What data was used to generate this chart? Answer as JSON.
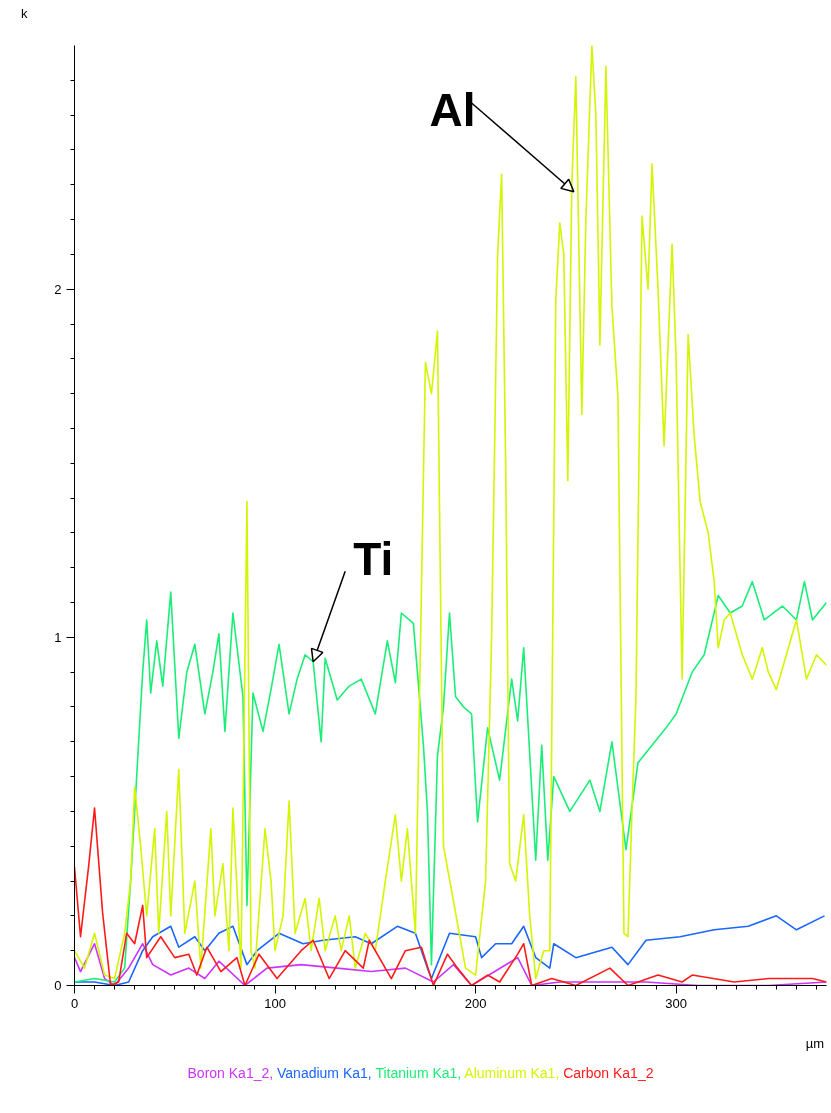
{
  "chart_data": {
    "type": "line",
    "xlabel": "µm",
    "ylabel": "k",
    "xlim": [
      0,
      375
    ],
    "ylim": [
      0,
      2.7
    ],
    "xticks": [
      0,
      {
        "value": 10,
        "label": null
      },
      {
        "value": 20,
        "label": null
      },
      {
        "value": 30,
        "label": null
      },
      {
        "value": 40,
        "label": null
      },
      {
        "value": 50,
        "label": null
      },
      {
        "value": 60,
        "label": null
      },
      {
        "value": 70,
        "label": null
      },
      {
        "value": 80,
        "label": null
      },
      {
        "value": 90,
        "label": null
      },
      100,
      {
        "value": 110,
        "label": null
      },
      {
        "value": 120,
        "label": null
      },
      {
        "value": 130,
        "label": null
      },
      {
        "value": 140,
        "label": null
      },
      {
        "value": 150,
        "label": null
      },
      {
        "value": 160,
        "label": null
      },
      {
        "value": 170,
        "label": null
      },
      {
        "value": 180,
        "label": null
      },
      {
        "value": 190,
        "label": null
      },
      200,
      {
        "value": 210,
        "label": null
      },
      {
        "value": 220,
        "label": null
      },
      {
        "value": 230,
        "label": null
      },
      {
        "value": 240,
        "label": null
      },
      {
        "value": 250,
        "label": null
      },
      {
        "value": 260,
        "label": null
      },
      {
        "value": 270,
        "label": null
      },
      {
        "value": 280,
        "label": null
      },
      {
        "value": 290,
        "label": null
      },
      300,
      {
        "value": 310,
        "label": null
      },
      {
        "value": 320,
        "label": null
      },
      {
        "value": 330,
        "label": null
      },
      {
        "value": 340,
        "label": null
      },
      {
        "value": 350,
        "label": null
      },
      {
        "value": 360,
        "label": null
      },
      {
        "value": 370,
        "label": null
      }
    ],
    "yticks": [
      0,
      {
        "value": 0.1,
        "label": null
      },
      {
        "value": 0.2,
        "label": null
      },
      {
        "value": 0.3,
        "label": null
      },
      {
        "value": 0.4,
        "label": null
      },
      {
        "value": 0.5,
        "label": null
      },
      {
        "value": 0.6,
        "label": null
      },
      {
        "value": 0.7,
        "label": null
      },
      {
        "value": 0.8,
        "label": null
      },
      {
        "value": 0.9,
        "label": null
      },
      1,
      {
        "value": 1.1,
        "label": null
      },
      {
        "value": 1.2,
        "label": null
      },
      {
        "value": 1.3,
        "label": null
      },
      {
        "value": 1.4,
        "label": null
      },
      {
        "value": 1.5,
        "label": null
      },
      {
        "value": 1.6,
        "label": null
      },
      {
        "value": 1.7,
        "label": null
      },
      {
        "value": 1.8,
        "label": null
      },
      {
        "value": 1.9,
        "label": null
      },
      2,
      {
        "value": 2.1,
        "label": null
      },
      {
        "value": 2.2,
        "label": null
      },
      {
        "value": 2.3,
        "label": null
      },
      {
        "value": 2.4,
        "label": null
      },
      {
        "value": 2.5,
        "label": null
      },
      {
        "value": 2.6,
        "label": null
      }
    ],
    "grid": false,
    "legend": "bottom",
    "annotations": [
      {
        "text": "Al",
        "x": 249,
        "y": 2.28
      },
      {
        "text": "Ti",
        "x": 119,
        "y": 0.93
      }
    ],
    "series": [
      {
        "name": "Boron Ka1_2,",
        "color": "#cc33ff",
        "x": [
          0,
          3,
          10,
          15,
          20,
          27,
          34,
          39,
          48,
          57,
          65,
          72,
          85,
          96,
          113,
          131,
          148,
          165,
          179,
          189,
          198,
          221,
          228,
          242,
          267,
          285,
          311,
          346,
          375
        ],
        "values": [
          0.08,
          0.04,
          0.12,
          0.02,
          0.0,
          0.05,
          0.12,
          0.06,
          0.03,
          0.05,
          0.02,
          0.07,
          0.0,
          0.05,
          0.06,
          0.05,
          0.04,
          0.05,
          0.01,
          0.06,
          0.0,
          0.08,
          0.0,
          0.01,
          0.01,
          0.01,
          0.0,
          0.0,
          0.01
        ]
      },
      {
        "name": "Vanadium Ka1,",
        "color": "#1a66ff",
        "x": [
          0,
          10,
          20,
          27,
          34,
          39,
          48,
          52,
          60,
          65,
          72,
          79,
          86,
          91,
          102,
          114,
          124,
          140,
          148,
          161,
          170,
          176,
          178,
          187,
          200,
          203,
          210,
          218,
          224,
          230,
          237,
          239,
          250,
          268,
          276,
          285,
          302,
          319,
          336,
          350,
          360,
          374
        ],
        "values": [
          0.01,
          0.01,
          0.0,
          0.01,
          0.1,
          0.14,
          0.17,
          0.11,
          0.14,
          0.1,
          0.15,
          0.17,
          0.06,
          0.1,
          0.15,
          0.12,
          0.13,
          0.14,
          0.12,
          0.17,
          0.15,
          0.05,
          0.02,
          0.15,
          0.14,
          0.08,
          0.12,
          0.12,
          0.17,
          0.08,
          0.05,
          0.12,
          0.08,
          0.11,
          0.06,
          0.13,
          0.14,
          0.16,
          0.17,
          0.2,
          0.16,
          0.2
        ]
      },
      {
        "name": "Titanium Ka1,",
        "color": "#1aee77",
        "x": [
          0,
          10,
          20,
          25,
          28,
          31,
          34,
          36,
          38,
          41,
          44,
          48,
          52,
          56,
          60,
          65,
          69,
          72,
          75,
          79,
          84,
          86,
          89,
          94,
          98,
          102,
          107,
          111,
          115,
          119,
          123,
          125,
          131,
          137,
          143,
          150,
          156,
          160,
          163,
          169,
          174,
          176,
          178,
          181,
          184,
          187,
          190,
          194,
          198,
          201,
          206,
          212,
          218,
          221,
          224,
          230,
          233,
          236,
          239,
          247,
          257,
          262,
          268,
          275,
          281,
          288,
          295,
          300,
          308,
          314,
          321,
          327,
          333,
          338,
          344,
          353,
          360,
          364,
          368,
          375
        ],
        "values": [
          0.01,
          0.02,
          0.01,
          0.05,
          0.3,
          0.6,
          0.9,
          1.05,
          0.84,
          0.99,
          0.86,
          1.13,
          0.71,
          0.9,
          0.98,
          0.78,
          0.9,
          1.01,
          0.73,
          1.07,
          0.83,
          0.23,
          0.84,
          0.73,
          0.85,
          0.98,
          0.78,
          0.88,
          0.95,
          0.93,
          0.7,
          0.94,
          0.82,
          0.86,
          0.88,
          0.78,
          0.99,
          0.87,
          1.07,
          1.04,
          0.69,
          0.5,
          0.06,
          0.66,
          0.8,
          1.07,
          0.83,
          0.8,
          0.78,
          0.47,
          0.74,
          0.59,
          0.88,
          0.76,
          0.97,
          0.36,
          0.69,
          0.36,
          0.6,
          0.5,
          0.59,
          0.5,
          0.7,
          0.39,
          0.64,
          0.69,
          0.74,
          0.78,
          0.9,
          0.95,
          1.12,
          1.07,
          1.09,
          1.16,
          1.05,
          1.09,
          1.05,
          1.16,
          1.05,
          1.1
        ]
      },
      {
        "name": "Aluminum Ka1,",
        "color": "#d4f500",
        "x": [
          0,
          5,
          10,
          15,
          20,
          25,
          28,
          30,
          33,
          36,
          40,
          42,
          46,
          48,
          52,
          55,
          60,
          63,
          68,
          70,
          74,
          77,
          79,
          83,
          86,
          88,
          90,
          95,
          98,
          100,
          104,
          107,
          110,
          115,
          118,
          122,
          125,
          130,
          133,
          137,
          140,
          145,
          150,
          155,
          160,
          163,
          166,
          170,
          175,
          178,
          181,
          184,
          190,
          195,
          200,
          205,
          208,
          211,
          213,
          215,
          217,
          220,
          224,
          227,
          230,
          234,
          237,
          240,
          242,
          244,
          246,
          248,
          250,
          253,
          255,
          258,
          260,
          262,
          265,
          268,
          271,
          274,
          276,
          278,
          280,
          283,
          286,
          288,
          291,
          294,
          298,
          300,
          303,
          306,
          309,
          312,
          316,
          319,
          321,
          324,
          327,
          333,
          338,
          343,
          346,
          350,
          355,
          360,
          365,
          370,
          375
        ],
        "values": [
          0.1,
          0.05,
          0.15,
          0.03,
          0.02,
          0.15,
          0.3,
          0.57,
          0.4,
          0.2,
          0.45,
          0.15,
          0.5,
          0.2,
          0.62,
          0.15,
          0.3,
          0.05,
          0.45,
          0.2,
          0.35,
          0.1,
          0.51,
          0.05,
          1.39,
          0.1,
          0.05,
          0.45,
          0.3,
          0.1,
          0.2,
          0.53,
          0.15,
          0.25,
          0.1,
          0.25,
          0.1,
          0.2,
          0.1,
          0.2,
          0.05,
          0.15,
          0.1,
          0.3,
          0.49,
          0.3,
          0.45,
          0.15,
          1.79,
          1.7,
          1.88,
          0.4,
          0.21,
          0.05,
          0.03,
          0.3,
          1.0,
          2.1,
          2.33,
          1.5,
          0.35,
          0.3,
          0.49,
          0.2,
          0.02,
          0.1,
          0.1,
          1.97,
          2.19,
          2.1,
          1.45,
          2.3,
          2.61,
          1.64,
          2.2,
          2.7,
          2.5,
          1.84,
          2.64,
          1.95,
          1.69,
          0.15,
          0.14,
          0.5,
          0.83,
          2.21,
          2.0,
          2.36,
          2.0,
          1.55,
          2.13,
          1.8,
          0.88,
          1.87,
          1.58,
          1.39,
          1.3,
          1.16,
          0.97,
          1.05,
          1.07,
          0.95,
          0.88,
          0.97,
          0.9,
          0.85,
          0.95,
          1.05,
          0.88,
          0.95,
          0.92
        ]
      },
      {
        "name": "Carbon Ka1_2",
        "color": "#ff1a1a",
        "x": [
          0,
          3,
          7,
          10,
          14,
          18,
          22,
          26,
          30,
          34,
          36,
          43,
          50,
          57,
          61,
          66,
          73,
          81,
          85,
          92,
          101,
          113,
          119,
          127,
          135,
          144,
          147,
          158,
          165,
          173,
          179,
          186,
          191,
          198,
          206,
          212,
          221,
          224,
          228,
          238,
          250,
          267,
          276,
          291,
          303,
          308,
          329,
          346,
          368,
          375
        ],
        "values": [
          0.34,
          0.14,
          0.34,
          0.51,
          0.21,
          0.0,
          0.01,
          0.15,
          0.12,
          0.23,
          0.08,
          0.14,
          0.08,
          0.09,
          0.03,
          0.11,
          0.04,
          0.08,
          0.0,
          0.09,
          0.02,
          0.1,
          0.13,
          0.02,
          0.1,
          0.05,
          0.13,
          0.02,
          0.1,
          0.11,
          0.0,
          0.09,
          0.05,
          0.0,
          0.03,
          0.01,
          0.09,
          0.12,
          0.0,
          0.02,
          0.0,
          0.05,
          0.0,
          0.03,
          0.01,
          0.03,
          0.01,
          0.02,
          0.02,
          0.01
        ]
      }
    ]
  }
}
